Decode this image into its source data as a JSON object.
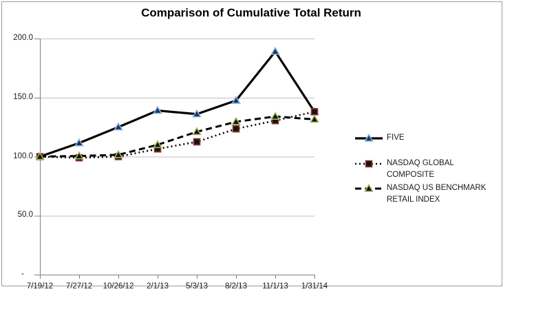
{
  "chart_data": {
    "type": "line",
    "title": "Comparison of Cumulative Total Return",
    "categories": [
      "7/19/12",
      "7/27/12",
      "10/26/12",
      "2/1/13",
      "5/3/13",
      "8/2/13",
      "11/1/13",
      "1/31/14"
    ],
    "y_axis": {
      "ticks": [
        200,
        150,
        100,
        50,
        0
      ],
      "tick_labels": [
        "200.0",
        "150.0",
        "100.0",
        "50.0",
        "-"
      ],
      "ylim": [
        0,
        200
      ]
    },
    "grid": "horizontal-on",
    "legend_position": "right-middle",
    "series": [
      {
        "name": "FIVE",
        "values": [
          100.0,
          111.5,
          125.0,
          139.0,
          136.0,
          147.5,
          189.0,
          138.0
        ],
        "line_style": "solid",
        "marker": "triangle",
        "line_color": "#000000",
        "marker_fill": "#17375E",
        "marker_stroke": "#8DB4E2"
      },
      {
        "name": "NASDAQ GLOBAL COMPOSITE",
        "values": [
          100.0,
          99.0,
          100.0,
          106.5,
          112.5,
          123.5,
          130.5,
          138.0
        ],
        "line_style": "dotted",
        "marker": "square",
        "line_color": "#000000",
        "marker_fill": "#141414",
        "marker_stroke": "#943634"
      },
      {
        "name": "NASDAQ US BENCHMARK RETAIL INDEX",
        "values": [
          100.0,
          100.5,
          101.5,
          110.0,
          121.0,
          129.5,
          134.0,
          131.5
        ],
        "line_style": "dashed",
        "marker": "triangle",
        "line_color": "#000000",
        "marker_fill": "#141408",
        "marker_stroke": "#A2B969"
      }
    ],
    "colors": {
      "background": "#FFFFFF",
      "chart_border": "#999999",
      "gridline": "#BFBFBF",
      "axis": "#7F7F7F",
      "text": "#1A1A1A"
    }
  }
}
